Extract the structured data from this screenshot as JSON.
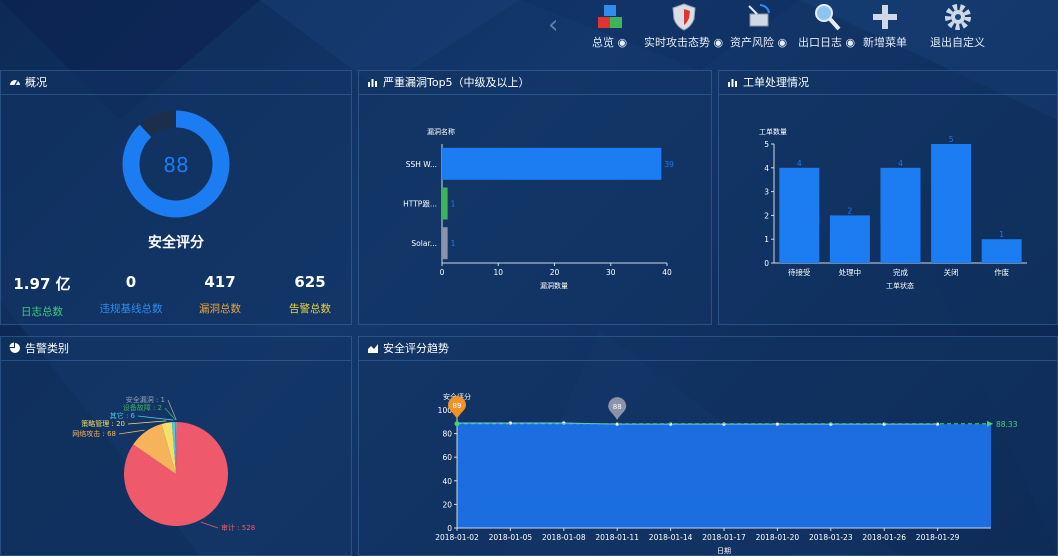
{
  "nav": {
    "items": [
      {
        "label": "总览",
        "eye": true
      },
      {
        "label": "实时攻击态势",
        "eye": true
      },
      {
        "label": "资产风险",
        "eye": true
      },
      {
        "label": "出口日志",
        "eye": true
      },
      {
        "label": "新增菜单",
        "eye": false
      },
      {
        "label": "退出自定义",
        "eye": false
      }
    ]
  },
  "overview": {
    "title": "概况",
    "score": "88",
    "score_value": 88,
    "score_label": "安全评分",
    "stats": [
      {
        "value": "1.97 亿",
        "label": "日志总数",
        "color": "#3ad07a"
      },
      {
        "value": "0",
        "label": "违规基线总数",
        "color": "#2f8df0"
      },
      {
        "value": "417",
        "label": "漏洞总数",
        "color": "#f0a33a"
      },
      {
        "value": "625",
        "label": "告警总数",
        "color": "#f0d23a"
      }
    ]
  },
  "vuln": {
    "title": "严重漏洞Top5（中级及以上）",
    "chart_data": {
      "type": "bar",
      "orientation": "horizontal",
      "ylabel": "漏洞名称",
      "xlabel": "漏洞数量",
      "categories": [
        "SSH W...",
        "HTTP跟...",
        "Solar..."
      ],
      "values": [
        39,
        1,
        1
      ],
      "colors": [
        "#1c7cf2",
        "#3fb35a",
        "#8a93a8"
      ],
      "xlim": [
        0,
        40
      ],
      "xticks": [
        "0",
        "10",
        "20",
        "30",
        "40"
      ]
    }
  },
  "workorder": {
    "title": "工单处理情况",
    "chart_data": {
      "type": "bar",
      "ylabel": "工单数量",
      "xlabel": "工单状态",
      "categories": [
        "待接受",
        "处理中",
        "完成",
        "关闭",
        "作废"
      ],
      "values": [
        4,
        2,
        4,
        5,
        1
      ],
      "ylim": [
        0,
        5
      ],
      "yticks": [
        "0",
        "1",
        "2",
        "3",
        "4",
        "5"
      ]
    }
  },
  "alarm": {
    "title": "告警类别",
    "chart_data": {
      "type": "pie",
      "slices": [
        {
          "name": "审计",
          "value": 528,
          "label": "审计 : 528",
          "color": "#ee5a6c"
        },
        {
          "name": "网络攻击",
          "value": 68,
          "label": "网络攻击 : 68",
          "color": "#f6b35a"
        },
        {
          "name": "策略管理",
          "value": 20,
          "label": "策略管理 : 20",
          "color": "#f4e06a"
        },
        {
          "name": "其它",
          "value": 6,
          "label": "其它 : 6",
          "color": "#56c8e0"
        },
        {
          "name": "设备故障",
          "value": 2,
          "label": "设备故障 : 2",
          "color": "#3fb35a"
        },
        {
          "name": "安全漏洞",
          "value": 1,
          "label": "安全漏洞 : 1",
          "color": "#9aa4b8"
        }
      ]
    }
  },
  "trend": {
    "title": "安全评分趋势",
    "chart_data": {
      "type": "area",
      "ylabel": "安全评分",
      "xlabel": "日期",
      "x": [
        "2018-01-02",
        "2018-01-05",
        "2018-01-08",
        "2018-01-11",
        "2018-01-14",
        "2018-01-17",
        "2018-01-20",
        "2018-01-23",
        "2018-01-26",
        "2018-01-29"
      ],
      "values": [
        89,
        89,
        89,
        88,
        88,
        88,
        88,
        88,
        88,
        88
      ],
      "ylim": [
        0,
        100
      ],
      "yticks": [
        "0",
        "20",
        "40",
        "60",
        "80",
        "100"
      ],
      "markers": [
        {
          "label": "89",
          "index": 0,
          "kind": "max",
          "color": "#f0922a"
        },
        {
          "label": "88",
          "index": 3,
          "kind": "min",
          "color": "#8a93a8"
        }
      ],
      "average": {
        "value": 88.33,
        "label": "88.33"
      }
    }
  }
}
